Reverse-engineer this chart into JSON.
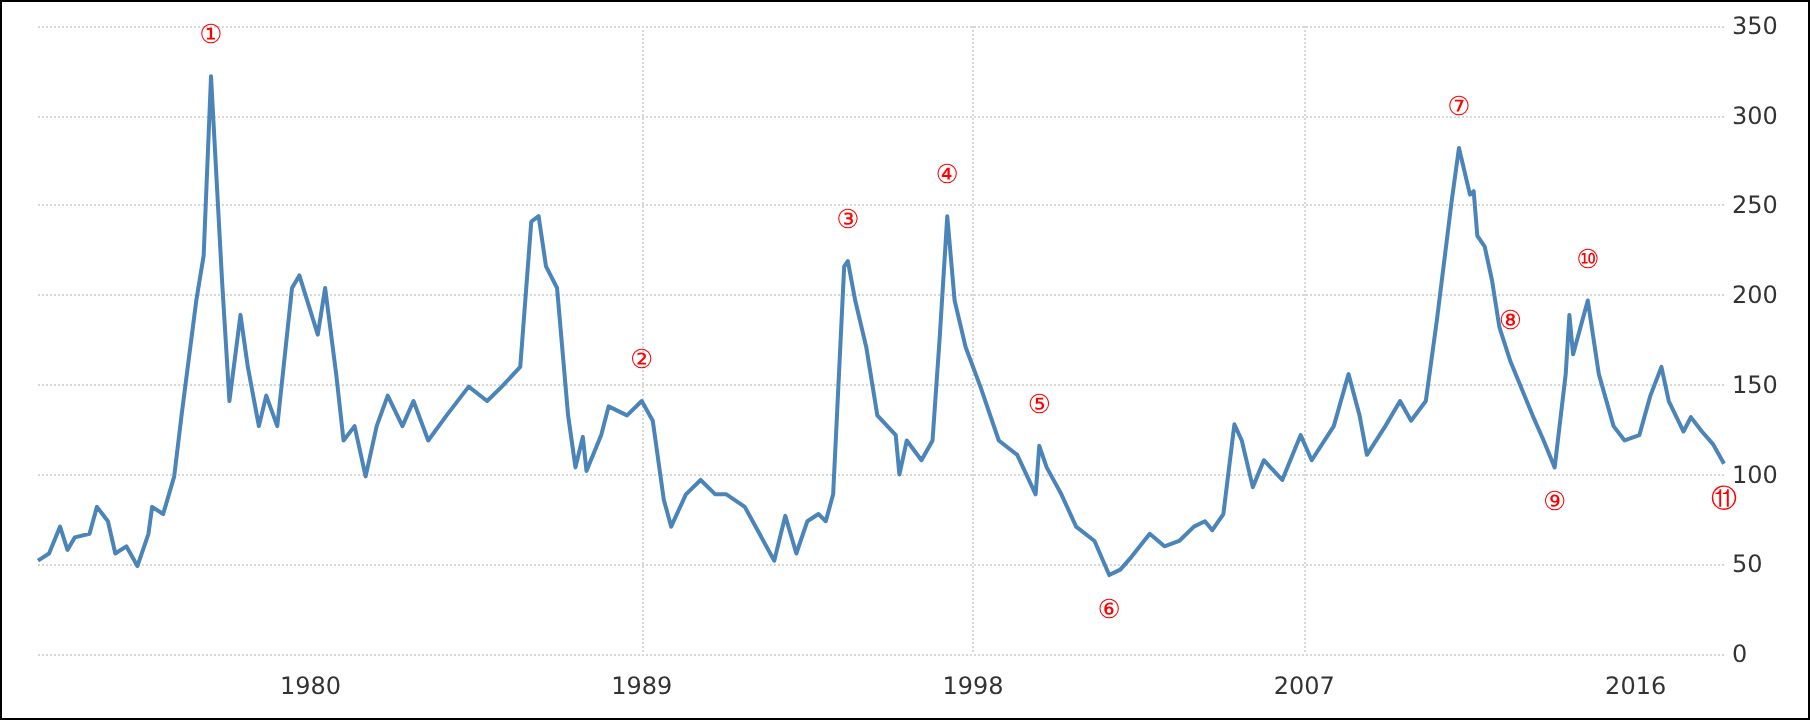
{
  "chart_data": {
    "type": "line",
    "x": [
      1972.6,
      1972.9,
      1973.2,
      1973.4,
      1973.6,
      1974.0,
      1974.2,
      1974.5,
      1974.7,
      1975.0,
      1975.3,
      1975.6,
      1975.7,
      1976.0,
      1976.3,
      1976.5,
      1976.9,
      1977.1,
      1977.3,
      1977.6,
      1977.8,
      1978.1,
      1978.3,
      1978.6,
      1978.8,
      1979.1,
      1979.5,
      1979.7,
      1980.2,
      1980.4,
      1980.7,
      1980.9,
      1981.2,
      1981.5,
      1981.8,
      1982.1,
      1982.5,
      1982.8,
      1983.2,
      1983.7,
      1984.3,
      1984.8,
      1985.2,
      1985.7,
      1986.0,
      1986.2,
      1986.4,
      1986.7,
      1987.0,
      1987.2,
      1987.4,
      1987.5,
      1987.9,
      1988.1,
      1988.6,
      1989.0,
      1989.3,
      1989.6,
      1989.8,
      1990.2,
      1990.6,
      1991.0,
      1991.3,
      1991.8,
      1992.2,
      1992.6,
      1992.9,
      1993.2,
      1993.5,
      1993.8,
      1994.0,
      1994.2,
      1994.5,
      1994.6,
      1994.8,
      1995.1,
      1995.4,
      1995.9,
      1996.0,
      1996.2,
      1996.6,
      1996.9,
      1997.1,
      1997.3,
      1997.5,
      1997.8,
      1998.2,
      1998.7,
      1999.2,
      1999.7,
      1999.8,
      2000.0,
      2000.4,
      2000.8,
      2001.3,
      2001.7,
      2002.0,
      2002.3,
      2002.8,
      2003.2,
      2003.6,
      2004.0,
      2004.3,
      2004.5,
      2004.8,
      2005.1,
      2005.3,
      2005.6,
      2005.9,
      2006.4,
      2006.9,
      2007.2,
      2007.8,
      2008.2,
      2008.5,
      2008.7,
      2009.2,
      2009.6,
      2009.9,
      2010.3,
      2010.6,
      2011.0,
      2011.2,
      2011.5,
      2011.6,
      2011.7,
      2011.9,
      2012.1,
      2012.3,
      2012.6,
      2013.2,
      2013.5,
      2013.8,
      2014.1,
      2014.2,
      2014.3,
      2014.7,
      2015.0,
      2015.4,
      2015.7,
      2016.1,
      2016.4,
      2016.7,
      2016.9,
      2017.3,
      2017.5,
      2017.8,
      2018.1,
      2018.4
    ],
    "series": [
      {
        "color": "#4a84b8",
        "values": [
          52,
          56,
          71,
          58,
          65,
          67,
          82,
          74,
          56,
          60,
          49,
          67,
          82,
          78,
          99,
          133,
          197,
          222,
          322,
          208,
          141,
          189,
          160,
          127,
          144,
          127,
          204,
          211,
          178,
          204,
          156,
          119,
          127,
          99,
          127,
          144,
          127,
          141,
          119,
          133,
          149,
          141,
          149,
          160,
          241,
          244,
          216,
          204,
          133,
          104,
          121,
          102,
          122,
          138,
          133,
          141,
          130,
          86,
          71,
          89,
          97,
          89,
          89,
          82,
          67,
          52,
          77,
          56,
          74,
          78,
          74,
          89,
          216,
          219,
          197,
          171,
          133,
          122,
          100,
          119,
          108,
          119,
          178,
          244,
          197,
          171,
          149,
          119,
          111,
          89,
          116,
          104,
          89,
          71,
          63,
          44,
          47,
          54,
          67,
          60,
          63,
          71,
          74,
          69,
          78,
          128,
          119,
          93,
          108,
          97,
          122,
          108,
          127,
          156,
          133,
          111,
          127,
          141,
          130,
          141,
          186,
          252,
          282,
          256,
          258,
          233,
          227,
          208,
          182,
          163,
          133,
          119,
          104,
          156,
          189,
          167,
          197,
          156,
          127,
          119,
          122,
          144,
          160,
          141,
          124,
          132,
          124,
          117,
          106
        ]
      }
    ],
    "xlim": [
      1972.6,
      2018.4
    ],
    "xticks": [
      1980,
      1989,
      1998,
      2007,
      2016
    ],
    "ylim": [
      0,
      350
    ],
    "yticks": [
      0,
      50,
      100,
      150,
      200,
      250,
      300,
      350
    ],
    "grid": true,
    "marker": "none",
    "line_style": "solid",
    "annotations": [
      {
        "text": "①",
        "x": 1977.3,
        "y": 322
      },
      {
        "text": "②",
        "x": 1989.0,
        "y": 141
      },
      {
        "text": "③",
        "x": 1994.6,
        "y": 219
      },
      {
        "text": "④",
        "x": 1997.3,
        "y": 244
      },
      {
        "text": "⑤",
        "x": 1999.8,
        "y": 116
      },
      {
        "text": "⑥",
        "x": 2001.7,
        "y": 44
      },
      {
        "text": "⑦",
        "x": 2011.2,
        "y": 282
      },
      {
        "text": "⑧",
        "x": 2012.6,
        "y": 163
      },
      {
        "text": "⑨",
        "x": 2013.8,
        "y": 104
      },
      {
        "text": "⑩",
        "x": 2014.7,
        "y": 197
      },
      {
        "text": "⑪",
        "x": 2018.4,
        "y": 106
      }
    ]
  }
}
